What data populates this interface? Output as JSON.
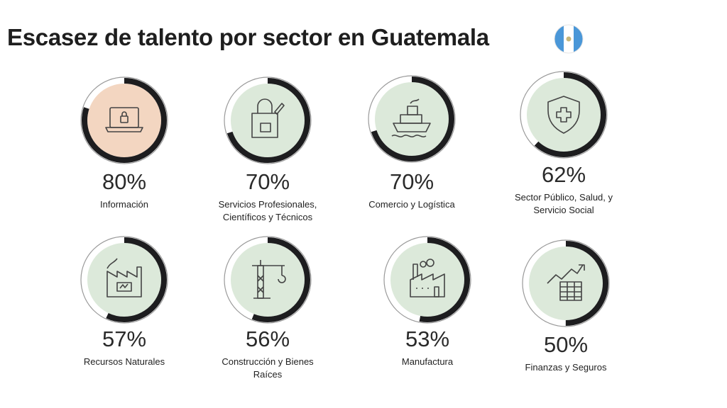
{
  "title": "Escasez de talento por sector en Guatemala",
  "flag_icon": "guatemala-flag-icon",
  "colors": {
    "highlight_fill": "#f3d6c1",
    "default_fill": "#dce9da",
    "arc": "#1d1d1f"
  },
  "chart_data": {
    "type": "donut-grid",
    "title": "Escasez de talento por sector en Guatemala",
    "categories": [
      "Información",
      "Servicios Profesionales, Científicos y Técnicos",
      "Comercio y Logística",
      "Sector Público, Salud, y Servicio Social",
      "Recursos Naturales",
      "Construcción y Bienes Raíces",
      "Manufactura",
      "Finanzas y Seguros"
    ],
    "values": [
      80,
      70,
      70,
      62,
      57,
      56,
      53,
      50
    ],
    "items": [
      {
        "label": "Información",
        "pct": "80%",
        "value": 80,
        "icon": "laptop-lock-icon",
        "highlight": true
      },
      {
        "label": "Servicios Profesionales, Científicos y Técnicos",
        "pct": "70%",
        "value": 70,
        "icon": "bag-pen-icon"
      },
      {
        "label": "Comercio y Logística",
        "pct": "70%",
        "value": 70,
        "icon": "ship-icon"
      },
      {
        "label": "Sector Público, Salud, y Servicio Social",
        "pct": "62%",
        "value": 62,
        "icon": "shield-cross-icon"
      },
      {
        "label": "Recursos Naturales",
        "pct": "57%",
        "value": 57,
        "icon": "factory-battery-icon"
      },
      {
        "label": "Construcción y Bienes Raíces",
        "pct": "56%",
        "value": 56,
        "icon": "crane-icon"
      },
      {
        "label": "Manufactura",
        "pct": "53%",
        "value": 53,
        "icon": "factory-icon"
      },
      {
        "label": "Finanzas y Seguros",
        "pct": "50%",
        "value": 50,
        "icon": "chart-table-icon"
      }
    ]
  }
}
